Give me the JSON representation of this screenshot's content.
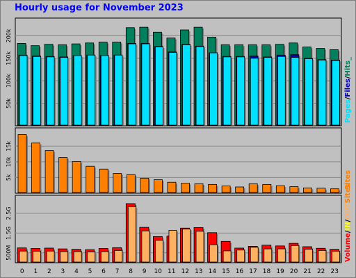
{
  "title": "Hourly usage for November 2023",
  "colors": {
    "background": "#c0c0c0",
    "hits": "#00805c",
    "files": "#0000c0",
    "pages": "#00e0ff",
    "sites": "#ff8000",
    "kbytes": "#ff0000",
    "volume_in": "#ffff00",
    "volume_out": "#ffb060"
  },
  "chart_data": [
    {
      "type": "bar",
      "panel": "hits",
      "categories": [
        "0",
        "1",
        "2",
        "3",
        "4",
        "5",
        "6",
        "7",
        "8",
        "9",
        "10",
        "11",
        "12",
        "13",
        "14",
        "15",
        "16",
        "17",
        "18",
        "19",
        "20",
        "21",
        "22",
        "23"
      ],
      "ylim": [
        0,
        230000
      ],
      "yticks": [
        50000,
        100000,
        150000,
        200000
      ],
      "ytick_labels": [
        "50k",
        "100k",
        "150k",
        "200k"
      ],
      "legend": [
        "Pages",
        "/",
        "Files",
        "/",
        "Hits",
        "_"
      ],
      "series": [
        {
          "name": "Hits",
          "values": [
            183000,
            178000,
            181000,
            180000,
            182000,
            184000,
            186000,
            186000,
            218000,
            219000,
            208000,
            195000,
            213000,
            219000,
            197000,
            180000,
            180000,
            180000,
            180000,
            181000,
            184000,
            175000,
            172000,
            169000
          ]
        },
        {
          "name": "Files",
          "values": [
            157000,
            155000,
            154000,
            153000,
            156000,
            157000,
            156000,
            157000,
            183000,
            183000,
            176000,
            164000,
            181000,
            177000,
            162000,
            154000,
            154000,
            155000,
            153000,
            157000,
            158000,
            150000,
            147000,
            146000
          ]
        },
        {
          "name": "Pages",
          "values": [
            156000,
            154000,
            153000,
            152000,
            156000,
            157000,
            156000,
            157000,
            182000,
            182000,
            175000,
            163000,
            180000,
            176000,
            162000,
            153000,
            153000,
            150000,
            152000,
            154000,
            152000,
            149000,
            146000,
            145000
          ]
        }
      ]
    },
    {
      "type": "bar",
      "panel": "sites",
      "categories": [
        "0",
        "1",
        "2",
        "3",
        "4",
        "5",
        "6",
        "7",
        "8",
        "9",
        "10",
        "11",
        "12",
        "13",
        "14",
        "15",
        "16",
        "17",
        "18",
        "19",
        "20",
        "21",
        "22",
        "23"
      ],
      "ylim": [
        0,
        19500
      ],
      "yticks": [
        5000,
        10000,
        15000
      ],
      "ytick_labels": [
        "5k",
        "10k",
        "15k"
      ],
      "legend": [
        "Sites"
      ],
      "series": [
        {
          "name": "Sites",
          "values": [
            18700,
            16000,
            13600,
            11400,
            10100,
            8600,
            7700,
            6300,
            5900,
            4800,
            4300,
            3500,
            3200,
            3000,
            2800,
            2300,
            2000,
            3000,
            2800,
            2400,
            2100,
            1700,
            1600,
            1400
          ]
        }
      ]
    },
    {
      "type": "bar",
      "panel": "volume",
      "categories": [
        "0",
        "1",
        "2",
        "3",
        "4",
        "5",
        "6",
        "7",
        "8",
        "9",
        "10",
        "11",
        "12",
        "13",
        "14",
        "15",
        "16",
        "17",
        "18",
        "19",
        "20",
        "21",
        "22",
        "23"
      ],
      "ylim": [
        0,
        3200
      ],
      "yticks": [
        500,
        1500,
        2500
      ],
      "ytick_labels": [
        "500M",
        "1.5G",
        "2.5G"
      ],
      "legend": [
        "Volume",
        "/",
        "IN",
        "/",
        "OUT",
        "Sites"
      ],
      "series": [
        {
          "name": "Volume",
          "values": [
            750,
            720,
            740,
            700,
            680,
            660,
            720,
            760,
            2990,
            1790,
            1320,
            1350,
            1750,
            1780,
            1520,
            1080,
            740,
            830,
            890,
            850,
            980,
            810,
            730,
            680
          ]
        },
        {
          "name": "OUT",
          "values": [
            590,
            580,
            590,
            560,
            560,
            540,
            560,
            620,
            2840,
            1610,
            1130,
            1640,
            1700,
            1590,
            910,
            600,
            640,
            780,
            700,
            700,
            870,
            680,
            620,
            580
          ]
        }
      ]
    }
  ]
}
